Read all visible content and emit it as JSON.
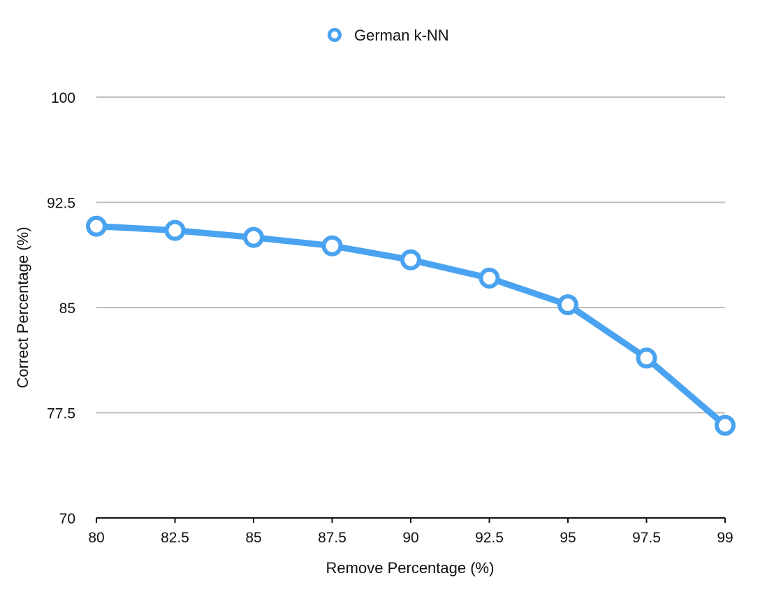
{
  "chart_data": {
    "type": "line",
    "title": "",
    "xlabel": "Remove Percentage (%)",
    "ylabel": "Correct Percentage (%)",
    "categories": [
      "80",
      "82.5",
      "85",
      "87.5",
      "90",
      "92.5",
      "95",
      "97.5",
      "99"
    ],
    "series": [
      {
        "name": "German k-NN",
        "values": [
          90.8,
          90.5,
          90.0,
          89.4,
          88.4,
          87.1,
          85.2,
          81.4,
          76.6
        ]
      }
    ],
    "ylim": [
      70,
      100
    ],
    "yticks": [
      "100",
      "92.5",
      "85",
      "77.5",
      "70"
    ],
    "ytick_values": [
      100,
      92.5,
      85,
      77.5,
      70
    ],
    "grid": true,
    "legend_position": "top-center",
    "series_color": "#4aa3f0",
    "grid_color": "#bdbdbd",
    "axis_color": "#111111"
  }
}
